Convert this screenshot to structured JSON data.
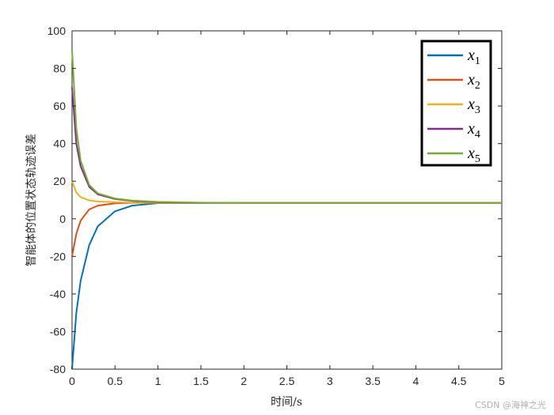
{
  "chart_data": {
    "type": "line",
    "xlabel": "时间/s",
    "ylabel": "智能体的位置状态轨迹误差",
    "xlim": [
      0,
      5
    ],
    "ylim": [
      -80,
      100
    ],
    "x_ticks": [
      "0",
      "0.5",
      "1",
      "1.5",
      "2",
      "2.5",
      "3",
      "3.5",
      "4",
      "4.5",
      "5"
    ],
    "y_ticks": [
      "100",
      "80",
      "60",
      "40",
      "20",
      "0",
      "-20",
      "-40",
      "-60",
      "-80"
    ],
    "grid": false,
    "legend_position": "top-right",
    "series": [
      {
        "name": "x",
        "sub": "1",
        "color": "#0072BD",
        "x": [
          0,
          0.05,
          0.1,
          0.2,
          0.3,
          0.5,
          0.7,
          1.0,
          1.5,
          2,
          3,
          4,
          5
        ],
        "values": [
          -80,
          -50,
          -33,
          -14,
          -4,
          4,
          7,
          8.3,
          8.5,
          8.5,
          8.5,
          8.5,
          8.5
        ]
      },
      {
        "name": "x",
        "sub": "2",
        "color": "#D95319",
        "x": [
          0,
          0.05,
          0.1,
          0.2,
          0.3,
          0.5,
          0.7,
          1.0,
          1.5,
          2,
          3,
          4,
          5
        ],
        "values": [
          -20,
          -8,
          -1,
          5,
          7,
          8.2,
          8.5,
          8.5,
          8.5,
          8.5,
          8.5,
          8.5,
          8.5
        ]
      },
      {
        "name": "x",
        "sub": "3",
        "color": "#EDB120",
        "x": [
          0,
          0.05,
          0.1,
          0.2,
          0.3,
          0.5,
          0.7,
          1.0,
          1.5,
          2,
          3,
          4,
          5
        ],
        "values": [
          20,
          14,
          11.5,
          9.8,
          9.2,
          8.8,
          8.6,
          8.5,
          8.5,
          8.5,
          8.5,
          8.5,
          8.5
        ]
      },
      {
        "name": "x",
        "sub": "4",
        "color": "#7E2F8E",
        "x": [
          0,
          0.05,
          0.1,
          0.2,
          0.3,
          0.5,
          0.7,
          1.0,
          1.5,
          2,
          3,
          4,
          5
        ],
        "values": [
          70,
          40,
          28,
          17,
          13,
          10.5,
          9.5,
          8.8,
          8.5,
          8.5,
          8.5,
          8.5,
          8.5
        ]
      },
      {
        "name": "x",
        "sub": "5",
        "color": "#77AC30",
        "x": [
          0,
          0.05,
          0.1,
          0.2,
          0.3,
          0.5,
          0.7,
          1.0,
          1.5,
          2,
          3,
          4,
          5
        ],
        "values": [
          90,
          48,
          31,
          18,
          13.5,
          10.8,
          9.7,
          9,
          8.6,
          8.5,
          8.5,
          8.5,
          8.5
        ]
      }
    ]
  },
  "watermark": "CSDN @海神之光"
}
